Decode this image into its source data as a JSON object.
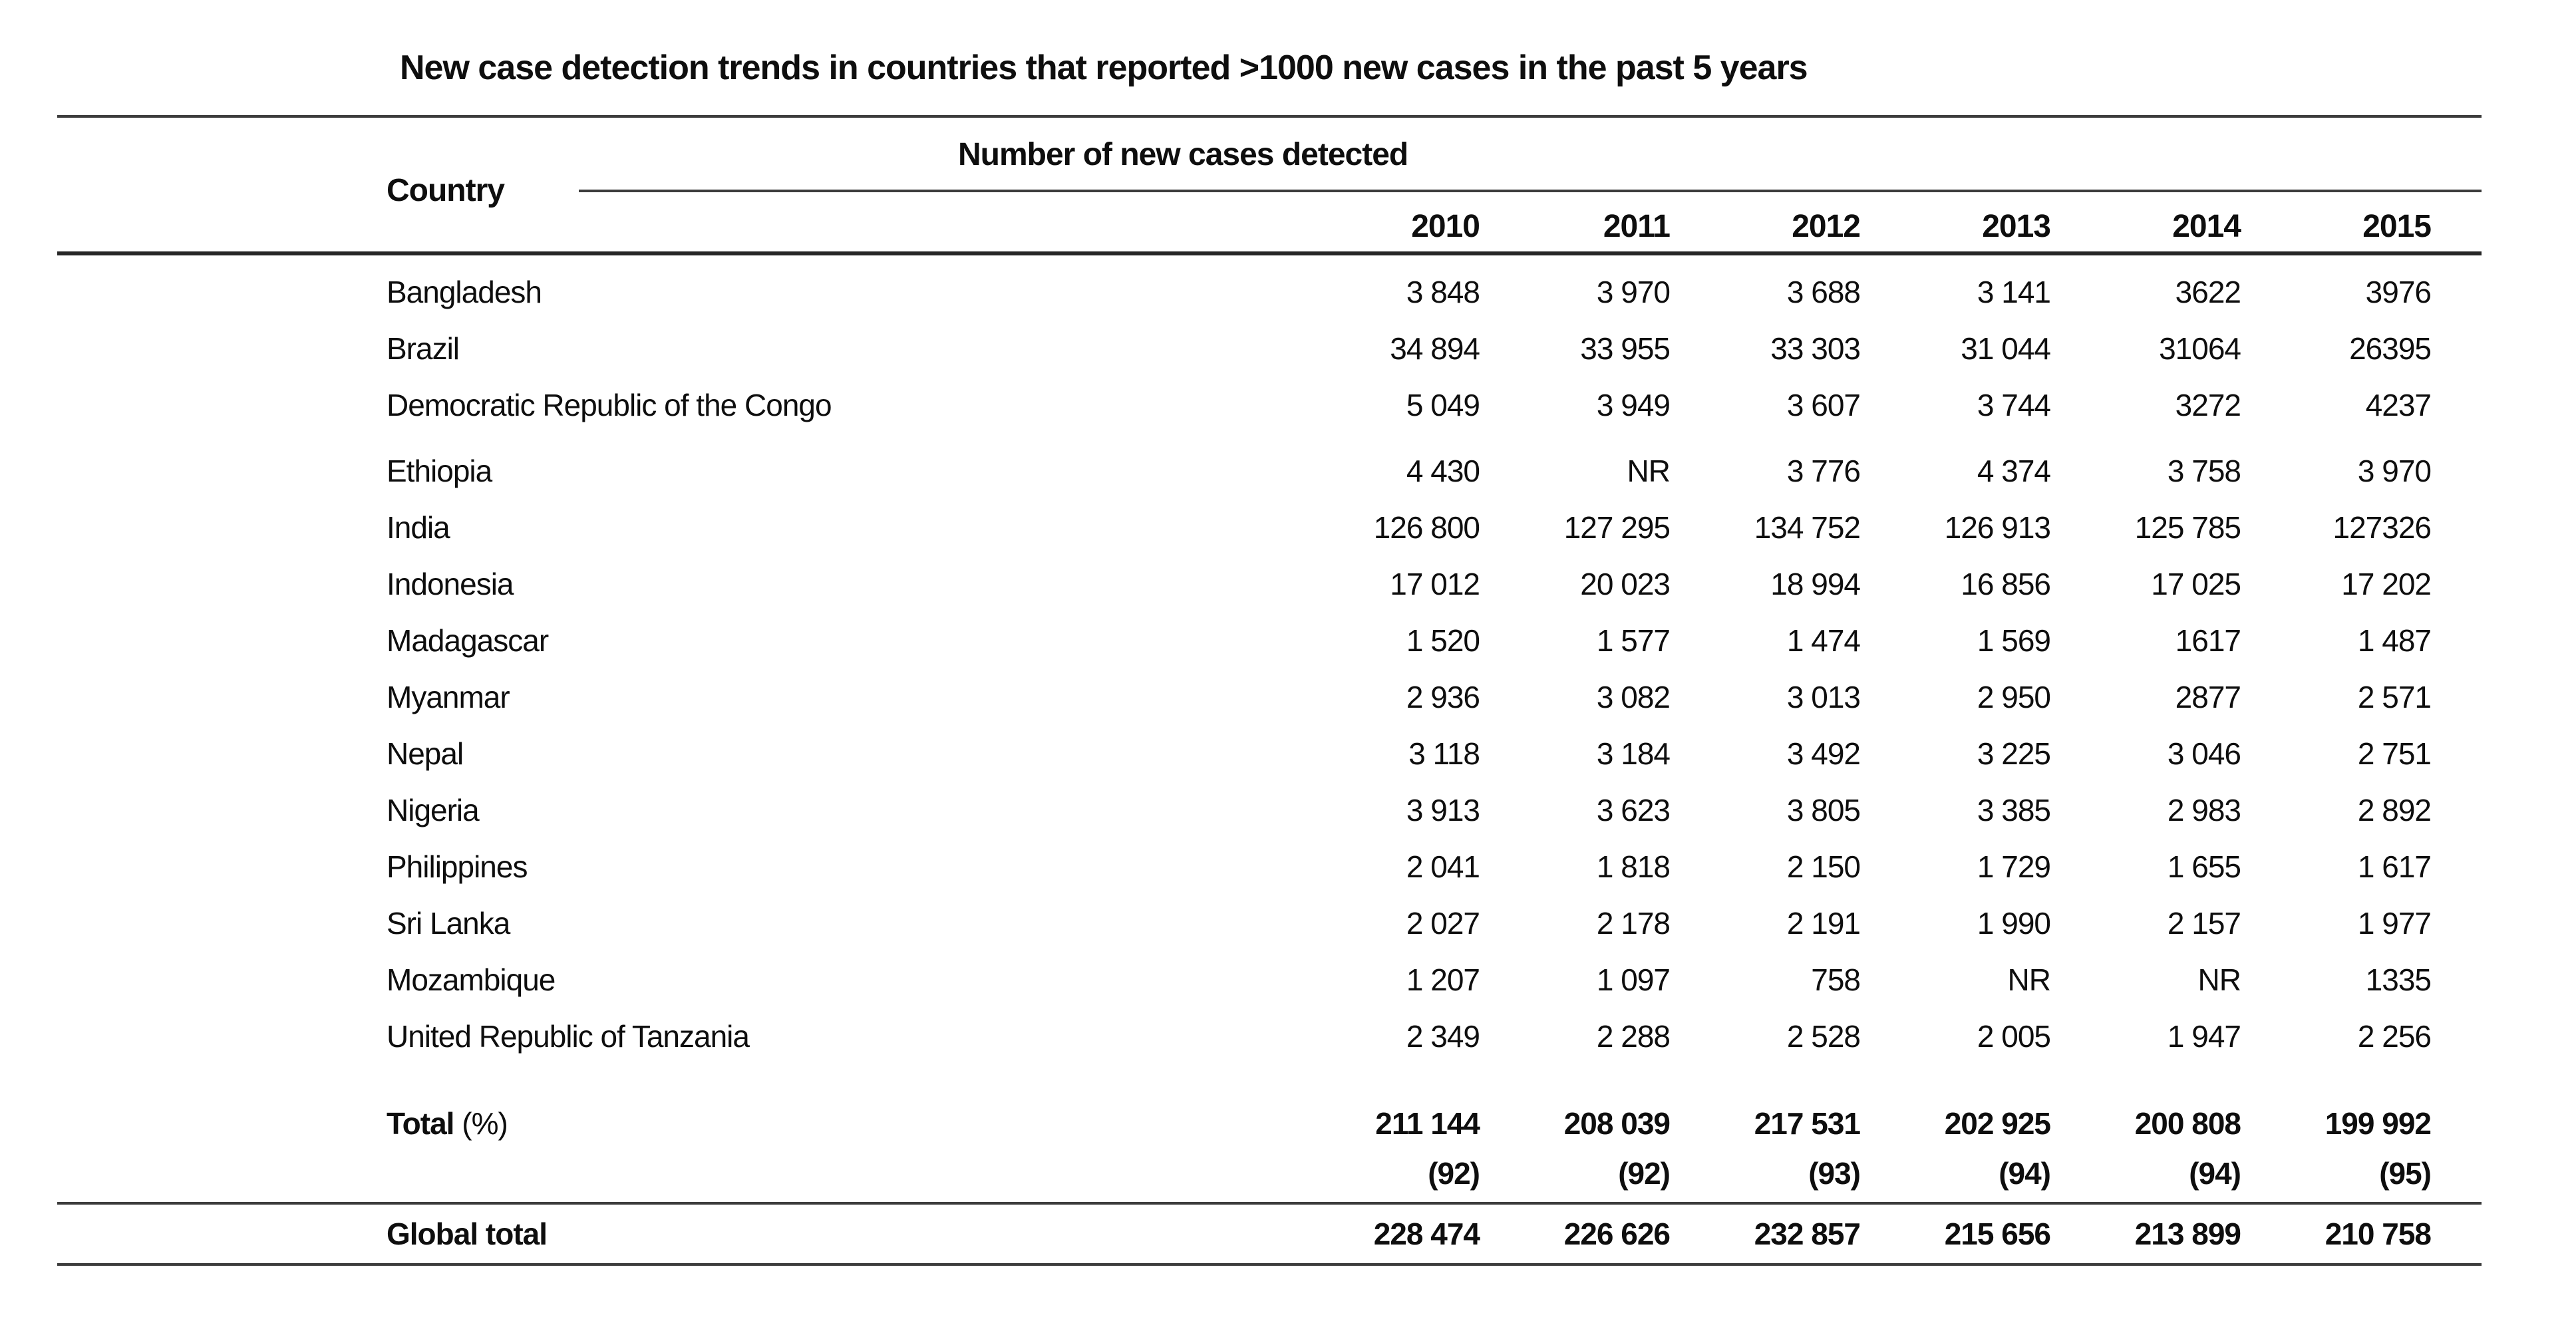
{
  "title": "New case detection trends in countries that reported >1000 new cases in the past 5 years",
  "table": {
    "country_header": "Country",
    "group_header": "Number of new cases detected",
    "years": [
      "2010",
      "2011",
      "2012",
      "2013",
      "2014",
      "2015"
    ],
    "rows": [
      {
        "country": "Bangladesh",
        "values": [
          "3 848",
          "3 970",
          "3 688",
          "3 141",
          "3622",
          "3976"
        ]
      },
      {
        "country": "Brazil",
        "values": [
          "34 894",
          "33 955",
          "33 303",
          "31 044",
          "31064",
          "26395"
        ]
      },
      {
        "country": "Democratic Republic of the Congo",
        "values": [
          "5 049",
          "3 949",
          "3 607",
          "3 744",
          "3272",
          "4237"
        ]
      },
      {
        "country": "Ethiopia",
        "values": [
          "4 430",
          "NR",
          "3 776",
          "4 374",
          "3 758",
          "3 970"
        ]
      },
      {
        "country": "India",
        "values": [
          "126 800",
          "127 295",
          "134 752",
          "126 913",
          "125 785",
          "127326"
        ]
      },
      {
        "country": "Indonesia",
        "values": [
          "17 012",
          "20 023",
          "18 994",
          "16 856",
          "17 025",
          "17 202"
        ]
      },
      {
        "country": "Madagascar",
        "values": [
          "1 520",
          "1 577",
          "1 474",
          "1 569",
          "1617",
          "1 487"
        ]
      },
      {
        "country": "Myanmar",
        "values": [
          "2 936",
          "3 082",
          "3 013",
          "2 950",
          "2877",
          "2 571"
        ]
      },
      {
        "country": "Nepal",
        "values": [
          "3 118",
          "3 184",
          "3 492",
          "3 225",
          "3 046",
          "2 751"
        ]
      },
      {
        "country": "Nigeria",
        "values": [
          "3 913",
          "3 623",
          "3 805",
          "3 385",
          "2 983",
          "2 892"
        ]
      },
      {
        "country": "Philippines",
        "values": [
          "2 041",
          "1 818",
          "2 150",
          "1 729",
          "1 655",
          "1 617"
        ]
      },
      {
        "country": "Sri Lanka",
        "values": [
          "2 027",
          "2 178",
          "2 191",
          "1 990",
          "2 157",
          "1 977"
        ]
      },
      {
        "country": "Mozambique",
        "values": [
          "1 207",
          "1 097",
          "758",
          "NR",
          "NR",
          "1335"
        ]
      },
      {
        "country": "United Republic of Tanzania",
        "values": [
          "2 349",
          "2 288",
          "2 528",
          "2 005",
          "1 947",
          "2 256"
        ]
      }
    ],
    "total_row": {
      "label": "Total",
      "label_suffix": " (%)",
      "values": [
        "211 144",
        "208 039",
        "217 531",
        "202 925",
        "200 808",
        "199 992"
      ]
    },
    "percent_row": {
      "values": [
        "(92)",
        "(92)",
        "(93)",
        "(94)",
        "(94)",
        "(95)"
      ]
    },
    "global_row": {
      "label": "Global total",
      "values": [
        "228 474",
        "226 626",
        "232 857",
        "215 656",
        "213 899",
        "210 758"
      ]
    }
  }
}
